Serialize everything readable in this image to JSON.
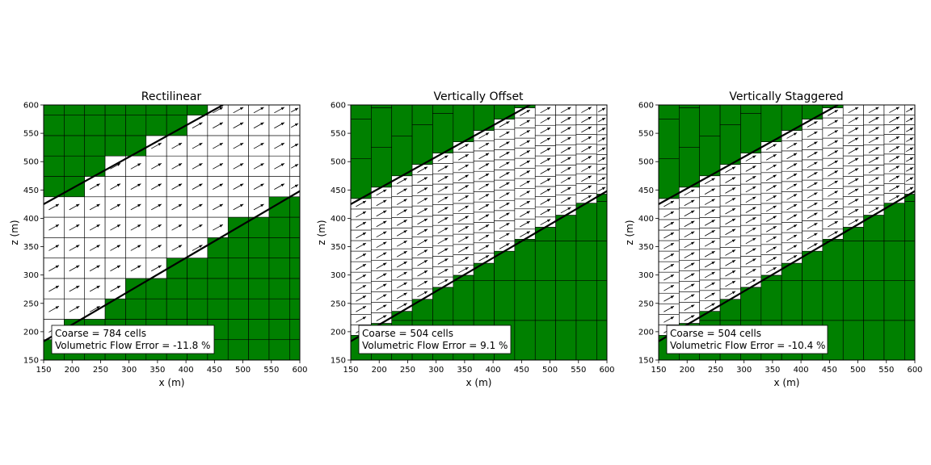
{
  "figure": {
    "panels": [
      {
        "id": "rectilinear",
        "title": "Rectilinear",
        "grid_kind": "rectilinear",
        "annotation": [
          "Coarse = 784 cells",
          "Volumetric Flow Error = -11.8 %"
        ]
      },
      {
        "id": "offset",
        "title": "Vertically Offset",
        "grid_kind": "offset",
        "annotation": [
          "Coarse = 504 cells",
          "Volumetric Flow Error = 9.1 %"
        ]
      },
      {
        "id": "staggered",
        "title": "Vertically Staggered",
        "grid_kind": "staggered",
        "annotation": [
          "Coarse = 504 cells",
          "Volumetric Flow Error = -10.4 %"
        ]
      }
    ]
  },
  "chart_data": {
    "type": "heatmap",
    "xlabel": "x (m)",
    "ylabel": "z (m)",
    "xlim": [
      150,
      600
    ],
    "ylim": [
      150,
      600
    ],
    "xticks": [
      150,
      200,
      250,
      300,
      350,
      400,
      450,
      500,
      550,
      600
    ],
    "yticks": [
      150,
      200,
      250,
      300,
      350,
      400,
      450,
      500,
      550,
      600
    ],
    "inactive_color": "#008000",
    "active_color": "#ffffff",
    "column_x": [
      150,
      186,
      222,
      258,
      294,
      330,
      366,
      402,
      438,
      474,
      510,
      546,
      582,
      600
    ],
    "aquifer_top_line": [
      [
        150,
        425
      ],
      [
        465,
        600
      ]
    ],
    "aquifer_bottom_line": [
      [
        150,
        183
      ],
      [
        600,
        448
      ]
    ],
    "rectilinear_rows_z": [
      150,
      186,
      222,
      258,
      294,
      330,
      366,
      402,
      438,
      474,
      510,
      546,
      582,
      600
    ],
    "offset_layers_per_column": 20
  }
}
